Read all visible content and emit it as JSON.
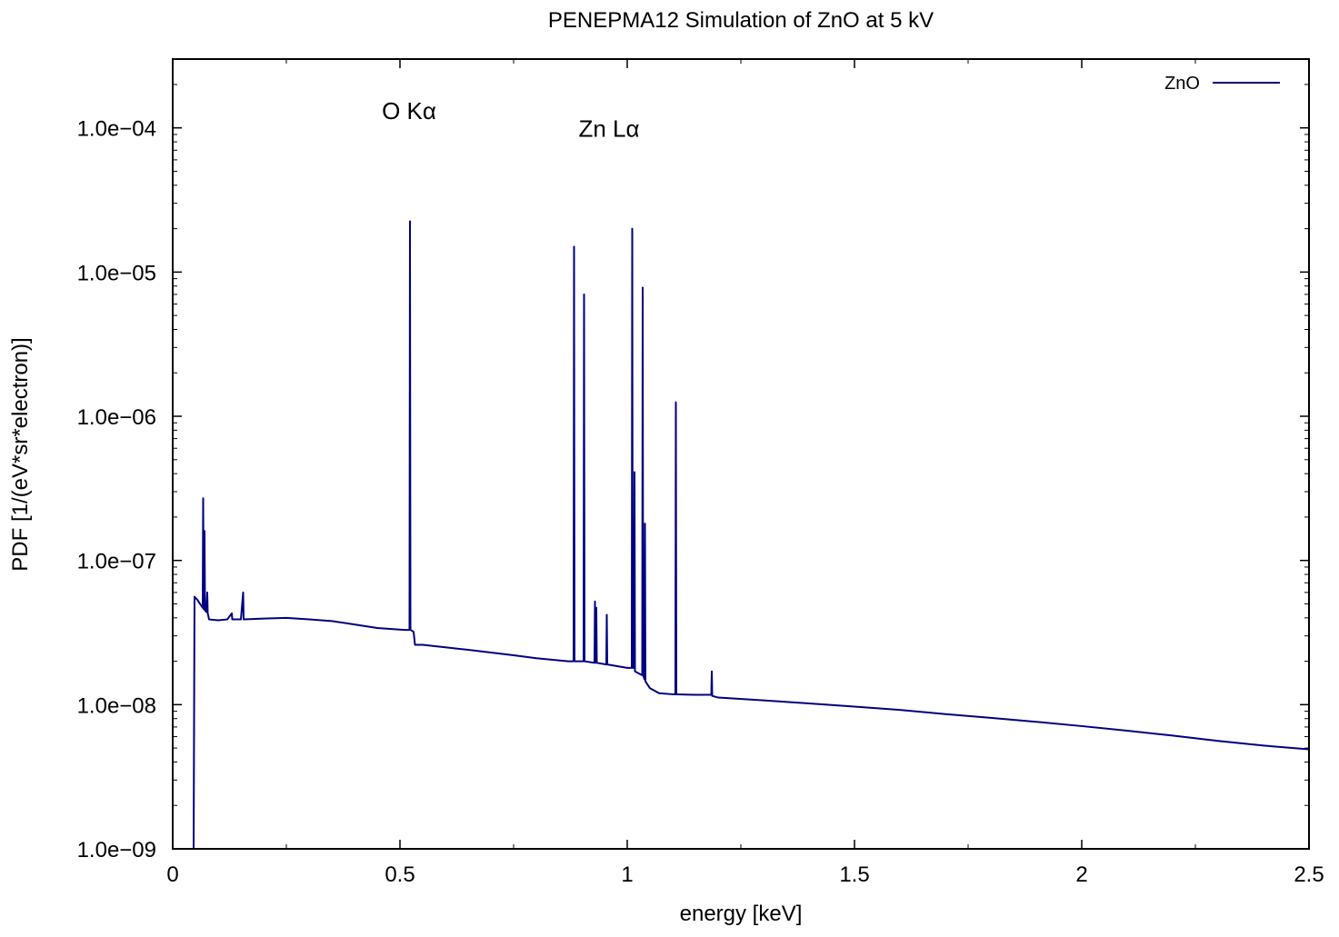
{
  "chart_data": {
    "type": "line",
    "title": "PENEPMA12 Simulation of ZnO at 5 kV",
    "xlabel": "energy [keV]",
    "ylabel": "PDF [1/(eV*sr*electron)]",
    "xlim": [
      0,
      2.5
    ],
    "ylim": [
      1e-09,
      0.0003
    ],
    "y_scale": "log",
    "grid": false,
    "legend_position": "top-right",
    "x_ticks": [
      0,
      0.5,
      1,
      1.5,
      2,
      2.5
    ],
    "x_tick_labels": [
      "0",
      "0.5",
      "1",
      "1.5",
      "2",
      "2.5"
    ],
    "y_ticks": [
      1e-09,
      1e-08,
      1e-07,
      1e-06,
      1e-05,
      0.0001
    ],
    "y_tick_labels": [
      "1.0e−09",
      "1.0e−08",
      "1.0e−07",
      "1.0e−06",
      "1.0e−05",
      "1.0e−04"
    ],
    "annotations": [
      {
        "text": "O Kα",
        "x": 0.52,
        "y": 0.000115
      },
      {
        "text": "Zn Lα",
        "x": 0.96,
        "y": 8.7e-05
      }
    ],
    "series": [
      {
        "name": "ZnO",
        "color": "#000080",
        "points": [
          [
            0.046,
            1e-09
          ],
          [
            0.048,
            5.6e-08
          ],
          [
            0.055,
            5.3e-08
          ],
          [
            0.06,
            5e-08
          ],
          [
            0.066,
            4.7e-08
          ],
          [
            0.067,
            2.7e-07
          ],
          [
            0.068,
            4.6e-08
          ],
          [
            0.07,
            1.6e-07
          ],
          [
            0.071,
            4.5e-08
          ],
          [
            0.074,
            4.4e-08
          ],
          [
            0.076,
            6e-08
          ],
          [
            0.077,
            4.3e-08
          ],
          [
            0.08,
            3.9e-08
          ],
          [
            0.1,
            3.85e-08
          ],
          [
            0.12,
            3.9e-08
          ],
          [
            0.13,
            4.3e-08
          ],
          [
            0.131,
            3.9e-08
          ],
          [
            0.15,
            3.9e-08
          ],
          [
            0.155,
            6e-08
          ],
          [
            0.156,
            3.9e-08
          ],
          [
            0.2,
            3.95e-08
          ],
          [
            0.25,
            4e-08
          ],
          [
            0.3,
            3.9e-08
          ],
          [
            0.35,
            3.8e-08
          ],
          [
            0.4,
            3.6e-08
          ],
          [
            0.45,
            3.4e-08
          ],
          [
            0.51,
            3.3e-08
          ],
          [
            0.521,
            3.3e-08
          ],
          [
            0.522,
            2.25e-05
          ],
          [
            0.523,
            3.3e-08
          ],
          [
            0.53,
            3.2e-08
          ],
          [
            0.533,
            2.6e-08
          ],
          [
            0.55,
            2.6e-08
          ],
          [
            0.6,
            2.5e-08
          ],
          [
            0.65,
            2.4e-08
          ],
          [
            0.7,
            2.3e-08
          ],
          [
            0.75,
            2.2e-08
          ],
          [
            0.8,
            2.1e-08
          ],
          [
            0.87,
            2e-08
          ],
          [
            0.882,
            2e-08
          ],
          [
            0.883,
            1.5e-05
          ],
          [
            0.884,
            2e-08
          ],
          [
            0.904,
            2e-08
          ],
          [
            0.905,
            7e-06
          ],
          [
            0.906,
            2e-08
          ],
          [
            0.928,
            1.95e-08
          ],
          [
            0.929,
            5.2e-08
          ],
          [
            0.93,
            1.95e-08
          ],
          [
            0.932,
            4.7e-08
          ],
          [
            0.933,
            1.95e-08
          ],
          [
            0.954,
            1.9e-08
          ],
          [
            0.955,
            4.2e-08
          ],
          [
            0.956,
            1.9e-08
          ],
          [
            1.0,
            1.8e-08
          ],
          [
            1.01,
            1.8e-08
          ],
          [
            1.011,
            2e-05
          ],
          [
            1.012,
            1.8e-08
          ],
          [
            1.015,
            1.8e-08
          ],
          [
            1.016,
            4.1e-07
          ],
          [
            1.017,
            1.7e-08
          ],
          [
            1.033,
            1.6e-08
          ],
          [
            1.034,
            7.8e-06
          ],
          [
            1.035,
            1.6e-08
          ],
          [
            1.038,
            1.5e-08
          ],
          [
            1.039,
            1.8e-07
          ],
          [
            1.04,
            1.45e-08
          ],
          [
            1.05,
            1.3e-08
          ],
          [
            1.07,
            1.2e-08
          ],
          [
            1.1,
            1.18e-08
          ],
          [
            1.106,
            1.18e-08
          ],
          [
            1.107,
            1.25e-06
          ],
          [
            1.108,
            1.18e-08
          ],
          [
            1.15,
            1.17e-08
          ],
          [
            1.185,
            1.17e-08
          ],
          [
            1.186,
            1.7e-08
          ],
          [
            1.187,
            1.15e-08
          ],
          [
            1.2,
            1.12e-08
          ],
          [
            1.3,
            1.07e-08
          ],
          [
            1.4,
            1.02e-08
          ],
          [
            1.5,
            9.7e-09
          ],
          [
            1.6,
            9.2e-09
          ],
          [
            1.7,
            8.6e-09
          ],
          [
            1.8,
            8.1e-09
          ],
          [
            1.9,
            7.6e-09
          ],
          [
            2.0,
            7.1e-09
          ],
          [
            2.1,
            6.6e-09
          ],
          [
            2.2,
            6.1e-09
          ],
          [
            2.3,
            5.6e-09
          ],
          [
            2.4,
            5.2e-09
          ],
          [
            2.5,
            4.9e-09
          ]
        ]
      }
    ]
  }
}
